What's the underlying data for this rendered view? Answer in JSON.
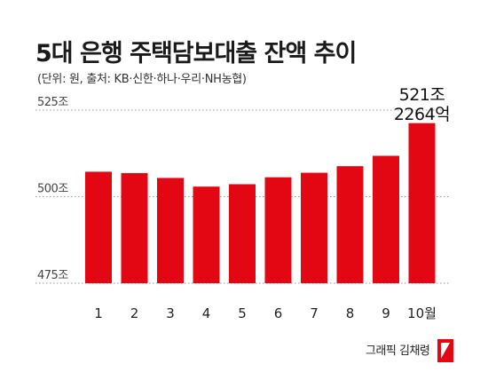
{
  "header": {
    "title": "5대 은행 주택담보대출 잔액 추이",
    "subtitle": "(단위: 원, 출처: KB·신한·하나·우리·NH농협)"
  },
  "credit": "그래픽 김채령",
  "chart_data": {
    "type": "bar",
    "categories": [
      "1",
      "2",
      "3",
      "4",
      "5",
      "6",
      "7",
      "8",
      "9",
      "10월"
    ],
    "values": [
      507.2,
      506.8,
      505.4,
      502.9,
      503.6,
      505.6,
      506.9,
      508.8,
      511.8,
      521.23
    ],
    "ylim": [
      475,
      525
    ],
    "yticks": [
      475,
      500,
      525
    ],
    "ytick_labels": [
      "475조",
      "500조",
      "525조"
    ],
    "annotation": {
      "index": 9,
      "lines": [
        "521조",
        "2264억"
      ]
    },
    "grid": "dotted",
    "bar_color": "#e30613"
  }
}
